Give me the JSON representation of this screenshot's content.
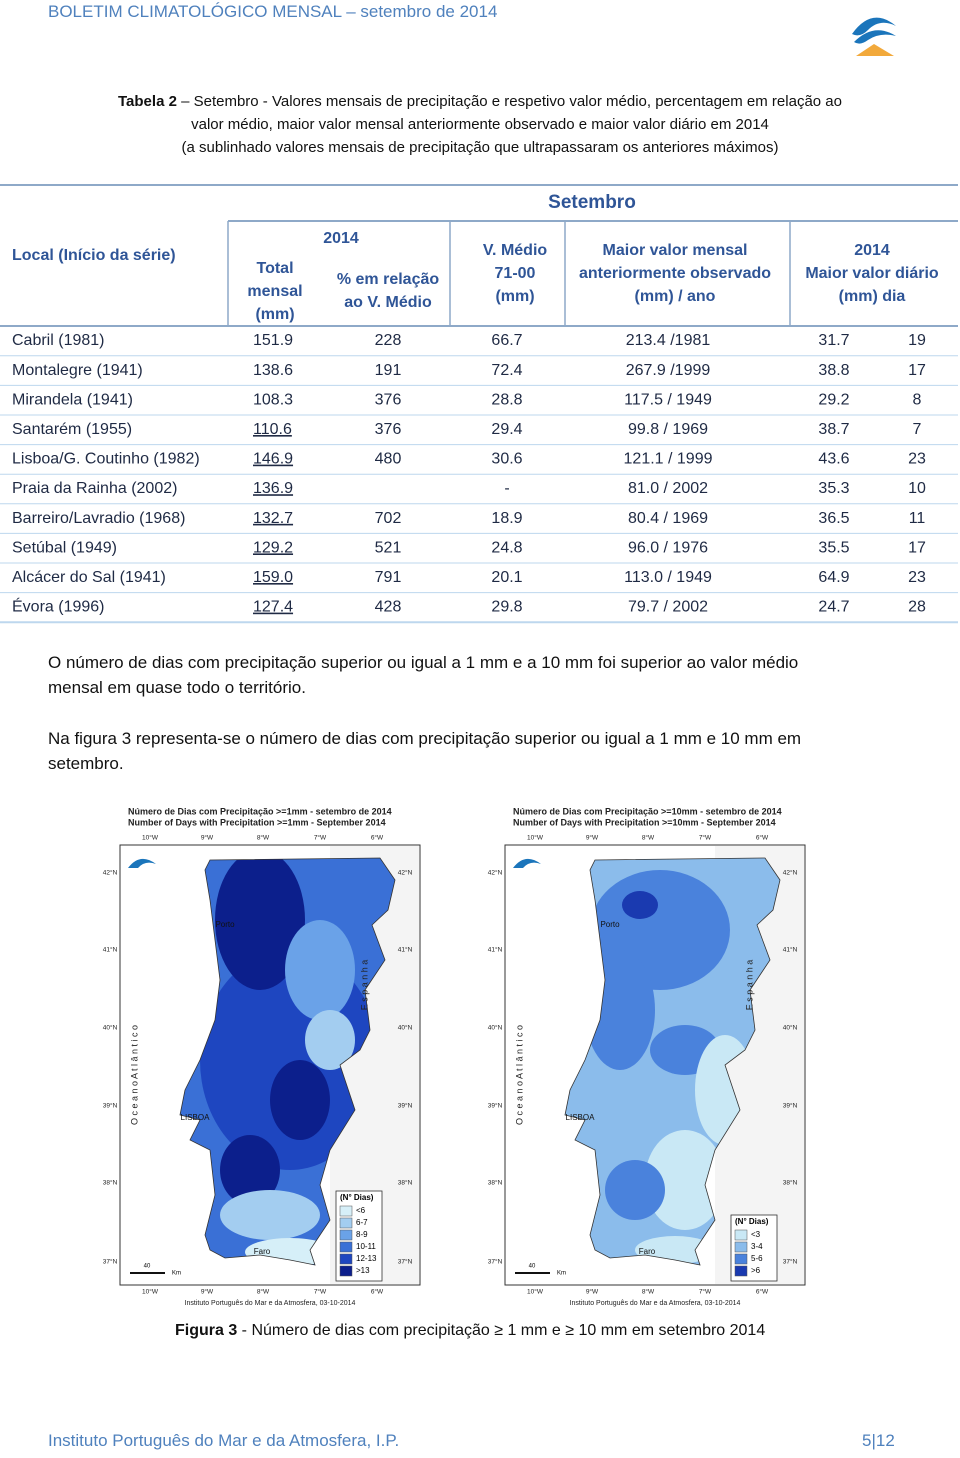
{
  "header": {
    "title": "BOLETIM CLIMATOLÓGICO MENSAL – setembro de 2014"
  },
  "caption": {
    "label": "Tabela 2",
    "lines": [
      " – Setembro - Valores mensais de precipitação e respetivo valor médio, percentagem em relação ao",
      "valor médio, maior valor mensal anteriormente observado e maior valor diário em 2014",
      "(a sublinhado valores mensais de precipitação que ultrapassaram os anteriores máximos)"
    ]
  },
  "table": {
    "group": "Setembro",
    "local": "Local (Início da série)",
    "year": "2014",
    "total": [
      "Total",
      "mensal",
      "(mm)"
    ],
    "pct": [
      "% em relação",
      "ao V. Médio"
    ],
    "vmedio": [
      "V. Médio",
      "71-00",
      "(mm)"
    ],
    "maior": [
      "Maior valor mensal",
      "anteriormente observado",
      "(mm)    /    ano"
    ],
    "diario": [
      "2014",
      "Maior valor diário",
      "(mm)        dia"
    ],
    "rows": [
      [
        "Cabril (1981)",
        "151.9",
        "228",
        "66.7",
        "213.4 /1981",
        "31.7",
        "19"
      ],
      [
        "Montalegre (1941)",
        "138.6",
        "191",
        "72.4",
        "267.9 /1999",
        "38.8",
        "17"
      ],
      [
        "Mirandela (1941)",
        "108.3",
        "376",
        "28.8",
        "117.5 / 1949",
        "29.2",
        "8"
      ],
      [
        "Santarém (1955)",
        "110.6",
        "376",
        "29.4",
        "99.8 / 1969",
        "38.7",
        "7"
      ],
      [
        "Lisboa/G. Coutinho (1982)",
        "146.9",
        "480",
        "30.6",
        "121.1 / 1999",
        "43.6",
        "23"
      ],
      [
        "Praia da Rainha (2002)",
        "136.9",
        "",
        "-",
        "81.0 / 2002",
        "35.3",
        "10"
      ],
      [
        "Barreiro/Lavradio (1968)",
        "132.7",
        "702",
        "18.9",
        "80.4 / 1969",
        "36.5",
        "11"
      ],
      [
        "Setúbal (1949)",
        "129.2",
        "521",
        "24.8",
        "96.0 / 1976",
        "35.5",
        "17"
      ],
      [
        "Alcácer do Sal (1941)",
        "159.0",
        "791",
        "20.1",
        "113.0 / 1949",
        "64.9",
        "23"
      ],
      [
        "Évora (1996)",
        "127.4",
        "428",
        "29.8",
        "79.7 / 2002",
        "24.7",
        "28"
      ]
    ],
    "underlined": [
      false,
      false,
      false,
      true,
      true,
      true,
      true,
      true,
      true,
      true
    ]
  },
  "paragraphs": [
    [
      "O número de dias com precipitação superior ou igual a 1 mm e a 10 mm foi superior ao valor médio",
      "mensal em quase todo o território."
    ],
    [
      "Na figura 3 representa-se o número de dias com precipitação superior ou igual a 1 mm e 10 mm em",
      "setembro."
    ]
  ],
  "figure": {
    "lon": [
      "10°W",
      "9°W",
      "8°W",
      "7°W",
      "6°W"
    ],
    "lat": [
      "42°N",
      "41°N",
      "40°N",
      "39°N",
      "38°N",
      "37°N"
    ],
    "ocean": "O c e a n o     A t l â n t i c o",
    "spain": "E s p a n h a",
    "cities": [
      "Porto",
      "LISBOA",
      "Faro"
    ],
    "scale": [
      "40",
      "Km"
    ],
    "legend_title": "(N° Dias)",
    "credit": "Instituto Português do Mar e da Atmosfera, 03-10-2014",
    "maps": [
      {
        "title": [
          "Número de Dias com Precipitação >=1mm - setembro de 2014",
          "Number of Days with Precipitation >=1mm - September 2014"
        ],
        "legend": [
          {
            "label": "<6",
            "color": "#d6eff8"
          },
          {
            "label": "6-7",
            "color": "#a3cdf0"
          },
          {
            "label": "8-9",
            "color": "#6aa2e8"
          },
          {
            "label": "10-11",
            "color": "#3a70d6"
          },
          {
            "label": "12-13",
            "color": "#1e46c0"
          },
          {
            "label": ">13",
            "color": "#0c1f8c"
          }
        ]
      },
      {
        "title": [
          "Número de Dias com Precipitação >=10mm - setembro de 2014",
          "Number of Days with Precipitation >=10mm - September 2014"
        ],
        "legend": [
          {
            "label": "<3",
            "color": "#c9e8f5"
          },
          {
            "label": "3-4",
            "color": "#8bbceb"
          },
          {
            "label": "5-6",
            "color": "#4a82dc"
          },
          {
            "label": ">6",
            "color": "#1a3ab0"
          }
        ]
      }
    ],
    "caption_label": "Figura 3",
    "caption": " - Número de dias com precipitação ≥ 1 mm e ≥ 10 mm em setembro 2014"
  },
  "footer": {
    "org": "Instituto Português do Mar e da Atmosfera, I.P.",
    "page": "5|12"
  }
}
